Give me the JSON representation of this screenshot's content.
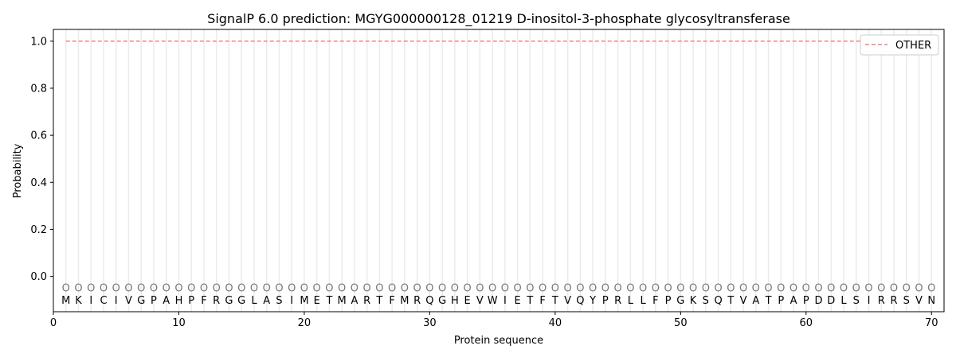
{
  "chart_data": {
    "type": "line",
    "title": "SignalP 6.0 prediction: MGYG000000128_01219 D-inositol-3-phosphate glycosyltransferase",
    "xlabel": "Protein sequence",
    "ylabel": "Probability",
    "xlim": [
      0,
      71
    ],
    "ylim": [
      -0.15,
      1.05
    ],
    "xticks": [
      0,
      10,
      20,
      30,
      40,
      50,
      60,
      70
    ],
    "yticks": [
      "0.0",
      "0.2",
      "0.4",
      "0.6",
      "0.8",
      "1.0"
    ],
    "sequence": "MKICIVGPAHPFRGGLASIMETMARTFMRQGHEVWIETFTVQYPRLLFPGKSQTVATPAPDDLSIRRSVN",
    "region_label": "O",
    "grid": "vertical per residue",
    "legend_position": "top-right",
    "series": [
      {
        "name": "OTHER",
        "color": "#f08080",
        "style": "dashed",
        "x_range": [
          1,
          70
        ],
        "value": 1.0
      }
    ]
  }
}
